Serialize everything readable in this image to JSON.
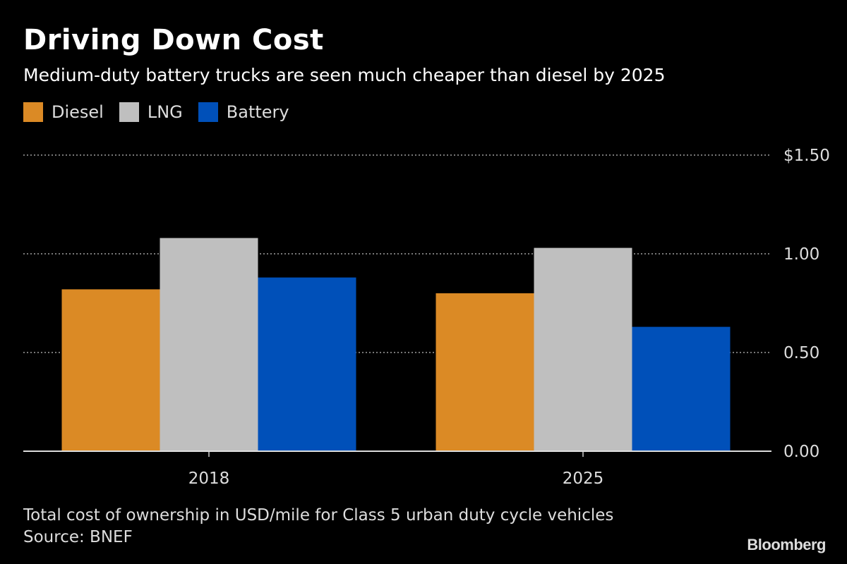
{
  "chart_data": {
    "type": "bar",
    "title": "Driving Down Cost",
    "subtitle": "Medium-duty battery trucks are seen much cheaper than diesel by 2025",
    "categories": [
      "2018",
      "2025"
    ],
    "series": [
      {
        "name": "Diesel",
        "color": "#db8a25",
        "values": [
          0.82,
          0.8
        ]
      },
      {
        "name": "LNG",
        "color": "#bfbfbf",
        "values": [
          1.08,
          1.03
        ]
      },
      {
        "name": "Battery",
        "color": "#0050b9",
        "values": [
          0.88,
          0.63
        ]
      }
    ],
    "ylim": [
      0,
      1.5
    ],
    "yticks": [
      {
        "value": 0,
        "label": "0.00"
      },
      {
        "value": 0.5,
        "label": "0.50"
      },
      {
        "value": 1.0,
        "label": "1.00"
      },
      {
        "value": 1.5,
        "label": "$1.50"
      }
    ],
    "grid": true,
    "legend_placement": "top-left",
    "xlabel": "",
    "ylabel": "",
    "note": "Total cost of ownership in USD/mile for Class 5 urban duty cycle vehicles",
    "source": "Source: BNEF"
  },
  "branding": {
    "logo": "Bloomberg"
  }
}
